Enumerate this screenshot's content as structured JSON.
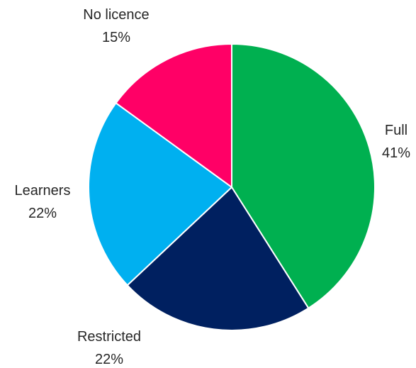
{
  "chart_data": {
    "type": "pie",
    "title": "",
    "start_angle_deg": 0,
    "direction": "clockwise",
    "legend": "none",
    "slices": [
      {
        "label": "Full",
        "percent_label": "41%",
        "value": 41,
        "color": "#00B050"
      },
      {
        "label": "Restricted",
        "percent_label": "22%",
        "value": 22,
        "color": "#002060"
      },
      {
        "label": "Learners",
        "percent_label": "22%",
        "value": 22,
        "color": "#00B0F0"
      },
      {
        "label": "No licence",
        "percent_label": "15%",
        "value": 15,
        "color": "#FF0066"
      }
    ]
  }
}
